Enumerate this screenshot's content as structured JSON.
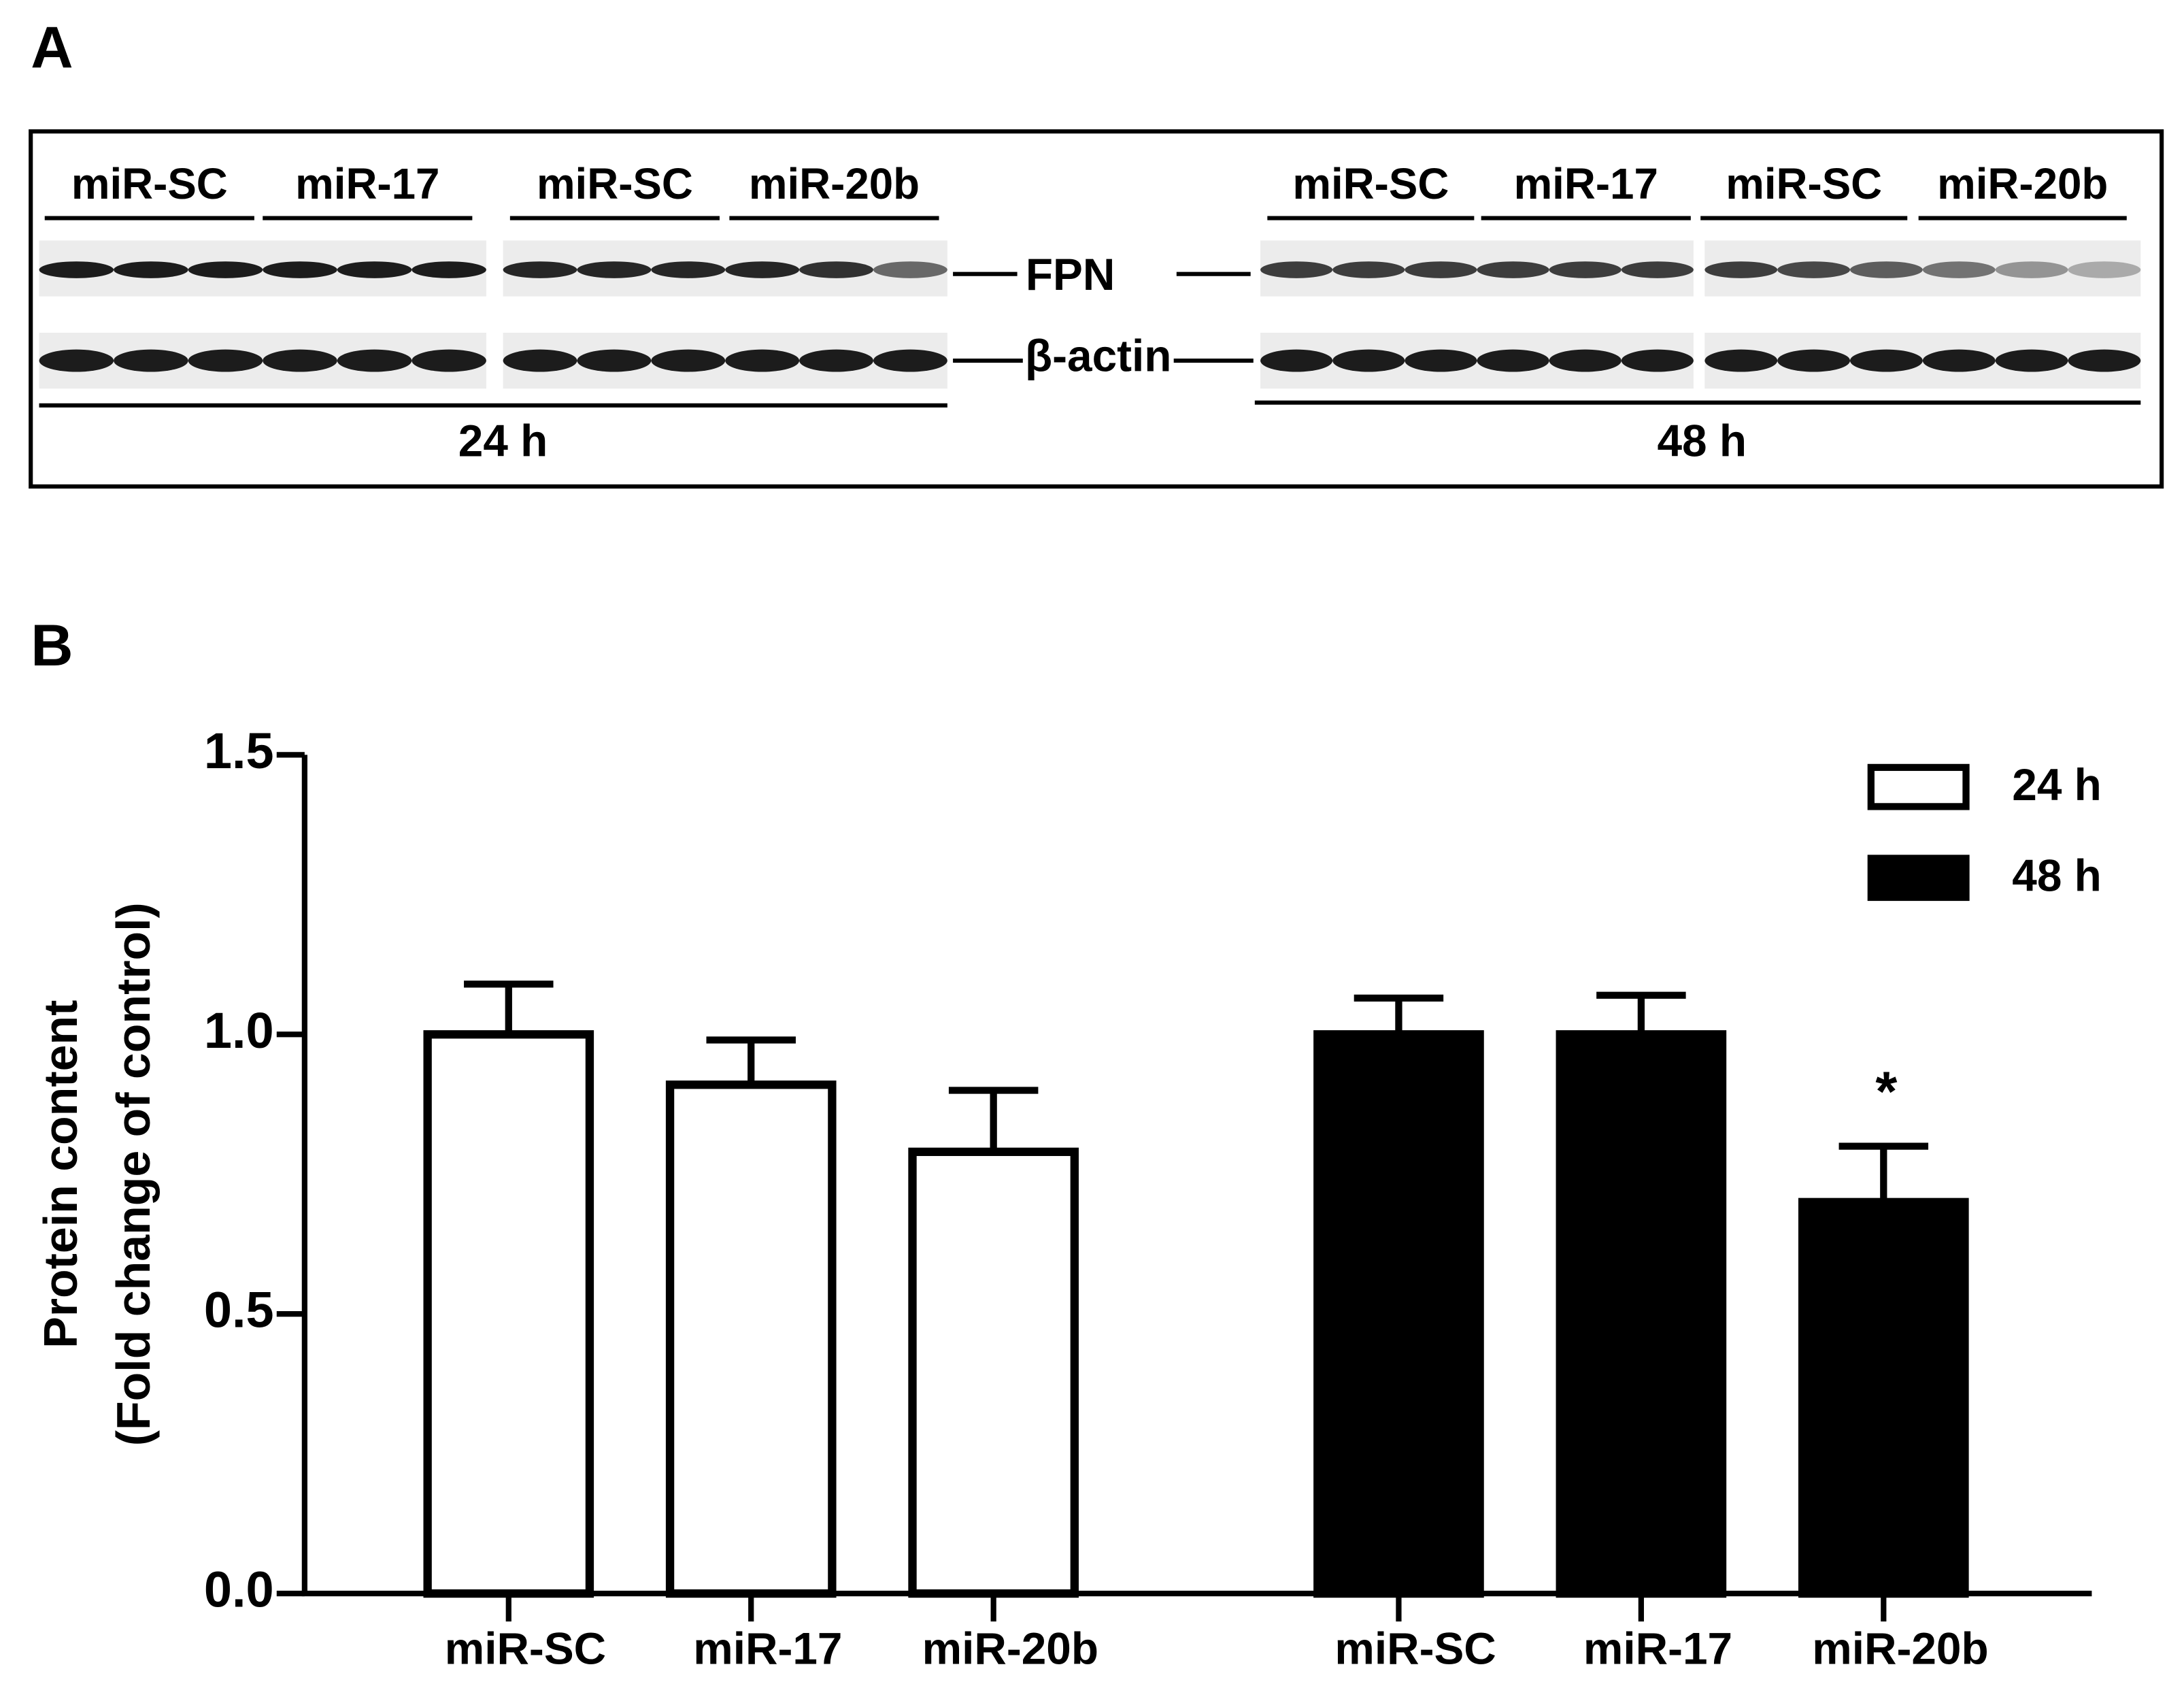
{
  "panel_a": {
    "label": "A",
    "groups_24h": [
      "miR-SC",
      "miR-17",
      "miR-SC",
      "miR-20b"
    ],
    "groups_48h": [
      "miR-SC",
      "miR-17",
      "miR-SC",
      "miR-20b"
    ],
    "bands": [
      "FPN",
      "β-actin"
    ],
    "times": [
      "24 h",
      "48 h"
    ]
  },
  "panel_b_label": "B",
  "chart_data": {
    "type": "bar",
    "y_label": [
      "Protein content",
      "(Fold change of control)"
    ],
    "categories": [
      "miR-SC",
      "miR-17",
      "miR-20b"
    ],
    "series": [
      {
        "name": "24 h",
        "color": "#ffffff",
        "values": [
          1.0,
          0.91,
          0.79
        ],
        "errors": [
          0.09,
          0.08,
          0.11
        ]
      },
      {
        "name": "48 h",
        "color": "#000000",
        "values": [
          1.0,
          1.0,
          0.7
        ],
        "errors": [
          0.065,
          0.07,
          0.1
        ]
      }
    ],
    "annotation": "*",
    "ylim": [
      0,
      1.5
    ],
    "yticks": [
      {
        "value": 0,
        "label": "0.0"
      },
      {
        "value": 0.5,
        "label": "0.5"
      },
      {
        "value": 1,
        "label": "1.0"
      },
      {
        "value": 1.5,
        "label": "1.5"
      }
    ],
    "legend": "upper right"
  }
}
